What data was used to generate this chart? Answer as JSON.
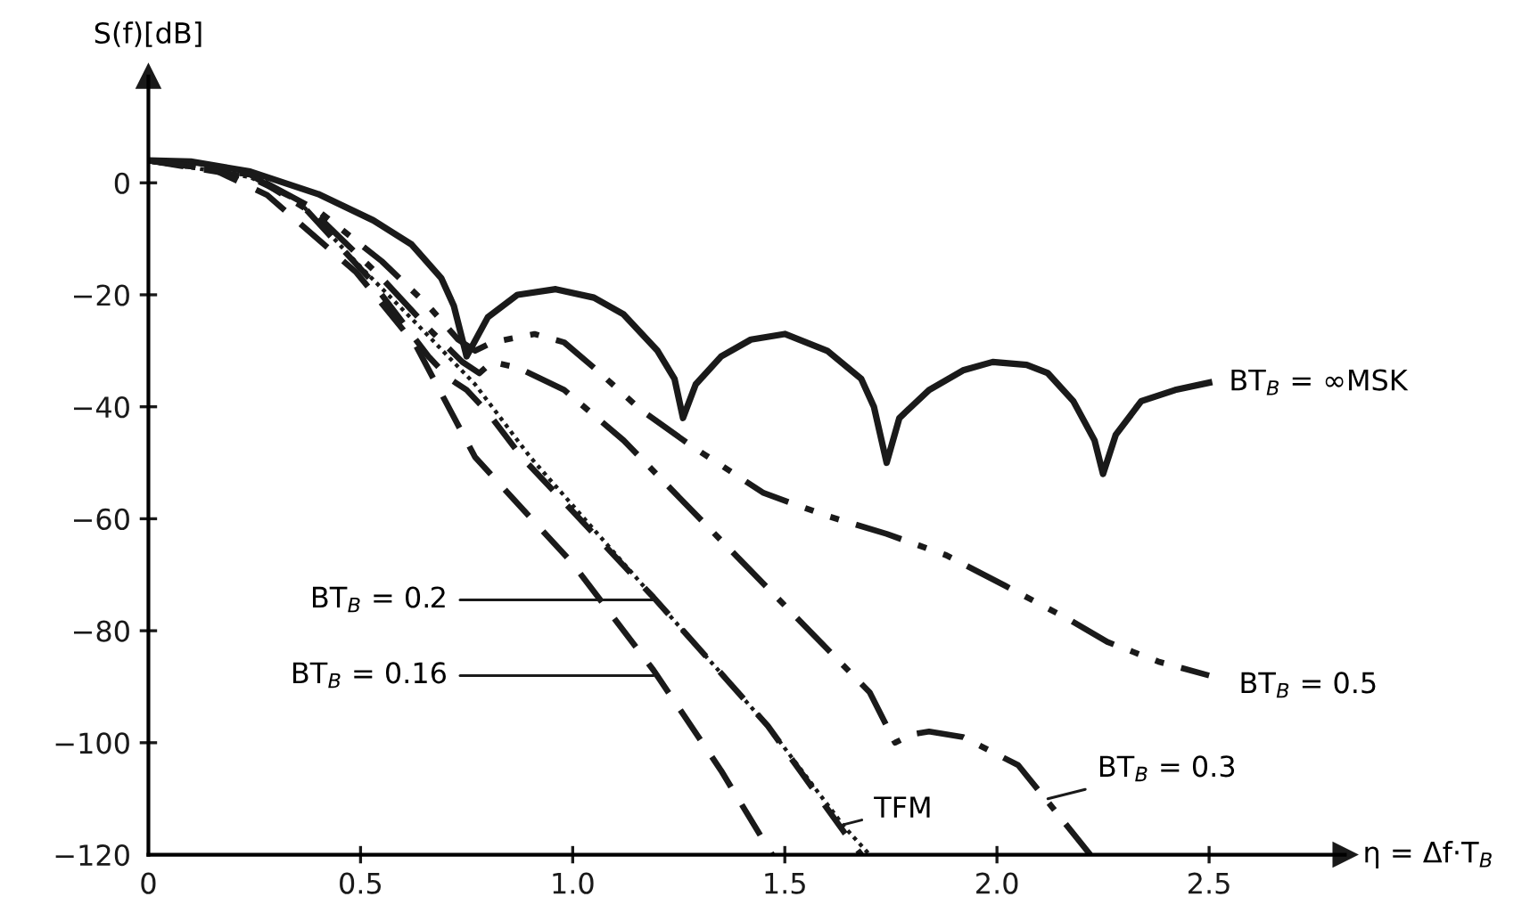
{
  "chart_data": {
    "type": "line",
    "xlabel": "η = Δf·T$_{B}$",
    "ylabel": "S(f)[dB]",
    "xlim": [
      0,
      2.82
    ],
    "ylim": [
      -120,
      19
    ],
    "xticks": [
      0,
      0.5,
      {
        "value": 1,
        "label": "1.0"
      },
      1.5,
      {
        "value": 2,
        "label": "2.0"
      },
      2.5
    ],
    "yticks": [
      {
        "value": -120,
        "label": "−120"
      },
      {
        "value": -100,
        "label": "−100"
      },
      {
        "value": -80,
        "label": "−80"
      },
      {
        "value": -60,
        "label": "−60"
      },
      {
        "value": -40,
        "label": "−40"
      },
      {
        "value": -20,
        "label": "−20"
      },
      0
    ],
    "grid": false,
    "legend": false,
    "marker": "none",
    "series": [
      {
        "color": "#1a1a1a",
        "line_style": "solid",
        "x": [
          0,
          0.1,
          0.24,
          0.4,
          0.53,
          0.62,
          0.69,
          0.72,
          0.75,
          0.8,
          0.87,
          0.96,
          1.05,
          1.12,
          1.2,
          1.24,
          1.26,
          1.29,
          1.35,
          1.42,
          1.5,
          1.6,
          1.68,
          1.71,
          1.74,
          1.77,
          1.84,
          1.92,
          1.99,
          2.07,
          2.12,
          2.18,
          2.23,
          2.25,
          2.28,
          2.34,
          2.42,
          2.5
        ],
        "values": [
          4,
          3.8,
          2,
          -2,
          -6.7,
          -11,
          -17,
          -22,
          -31,
          -24,
          -20,
          -19,
          -20.5,
          -23.5,
          -30,
          -35,
          -42,
          -36,
          -31,
          -28,
          -27,
          -30,
          -35,
          -40,
          -50,
          -42,
          -37,
          -33.5,
          -32,
          -32.5,
          -34,
          -39,
          -46,
          -52,
          -45,
          -39,
          -37,
          -35.7
        ]
      },
      {
        "color": "#1a1a1a",
        "line_style": "dashdotdot",
        "x": [
          0,
          0.24,
          0.4,
          0.55,
          0.66,
          0.73,
          0.77,
          0.81,
          0.91,
          0.98,
          1.05,
          1.16,
          1.28,
          1.45,
          1.6,
          1.74,
          1.88,
          2.02,
          2.17,
          2.26,
          2.38,
          2.5
        ],
        "values": [
          4,
          1.5,
          -5,
          -14,
          -22,
          -28,
          -30,
          -28.5,
          -27,
          -28.5,
          -33,
          -40.5,
          -47,
          -55.4,
          -59.5,
          -62.7,
          -66.5,
          -72,
          -78,
          -82,
          -85.5,
          -88
        ]
      },
      {
        "color": "#1a1a1a",
        "line_style": "dashdot",
        "x": [
          0,
          0.24,
          0.4,
          0.55,
          0.66,
          0.74,
          0.78,
          0.81,
          0.87,
          0.98,
          1.12,
          1.3,
          1.5,
          1.7,
          1.76,
          1.8,
          1.84,
          1.92,
          2.05,
          2.13,
          2.22
        ],
        "values": [
          4,
          1.5,
          -6,
          -17,
          -26,
          -32,
          -34,
          -32,
          -33,
          -37,
          -46,
          -60,
          -75.5,
          -91,
          -100,
          -98.5,
          -98,
          -99,
          -104,
          -111.5,
          -120
        ]
      },
      {
        "color": "#1a1a1a",
        "line_style": "dotted",
        "x": [
          0,
          0.24,
          0.35,
          0.5,
          0.63,
          0.77,
          0.9,
          1.19,
          1.46,
          1.64,
          1.7
        ],
        "values": [
          4,
          1,
          -3,
          -15,
          -25,
          -36,
          -49,
          -74,
          -97,
          -115,
          -120
        ]
      },
      {
        "color": "#1a1a1a",
        "line_style": "dashed",
        "x": [
          0,
          0.24,
          0.35,
          0.52,
          0.66,
          0.71,
          0.75,
          0.8,
          0.88,
          1.19,
          1.46,
          1.64,
          1.68
        ],
        "values": [
          4,
          1,
          -3,
          -17,
          -31,
          -35,
          -37,
          -41,
          -49,
          -74,
          -97,
          -116,
          -120
        ]
      },
      {
        "color": "#1a1a1a",
        "line_style": "dashed",
        "x": [
          0,
          0.15,
          0.28,
          0.49,
          0.63,
          0.77,
          1.0,
          1.19,
          1.35,
          1.47
        ],
        "values": [
          4,
          2.5,
          -2.2,
          -16,
          -29,
          -49,
          -68,
          -87,
          -105,
          -120
        ]
      }
    ],
    "annotations": [
      {
        "text": "BT$_{B}$ = ∞MSK",
        "x": 2.5,
        "y": -35.7
      },
      {
        "text": "BT$_{B}$ = 0.5",
        "x": 2.5,
        "y": -88
      },
      {
        "text": "BT$_{B}$ = 0.3",
        "x": 2.12,
        "y": -110
      },
      {
        "text": "TFM",
        "x": 1.64,
        "y": -114.6
      },
      {
        "text": "BT$_{B}$ = 0.2",
        "x": 1.19,
        "y": -74.5
      },
      {
        "text": "BT$_{B}$ = 0.16",
        "x": 1.19,
        "y": -88
      }
    ]
  }
}
